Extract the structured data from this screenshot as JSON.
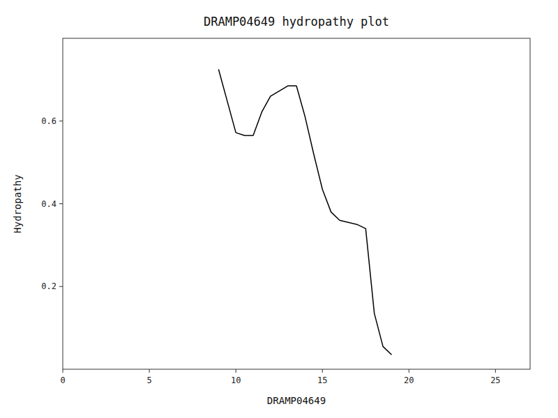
{
  "chart_data": {
    "type": "line",
    "title": "DRAMP04649 hydropathy plot",
    "xlabel": "DRAMP04649",
    "ylabel": "Hydropathy",
    "x": [
      9.0,
      10.0,
      10.5,
      11.0,
      11.5,
      12.0,
      13.0,
      13.5,
      14.0,
      14.5,
      15.0,
      15.5,
      16.0,
      16.5,
      17.0,
      17.5,
      18.0,
      18.5,
      19.0
    ],
    "values": [
      0.725,
      0.572,
      0.565,
      0.565,
      0.622,
      0.66,
      0.685,
      0.685,
      0.61,
      0.52,
      0.435,
      0.38,
      0.36,
      0.355,
      0.35,
      0.34,
      0.135,
      0.055,
      0.035
    ],
    "color": "#000000",
    "xlim": [
      0,
      27
    ],
    "ylim": [
      0,
      0.8
    ],
    "xticks": [
      0,
      5,
      10,
      15,
      20,
      25
    ],
    "yticks": [
      0.2,
      0.4,
      0.6
    ],
    "grid": false
  }
}
